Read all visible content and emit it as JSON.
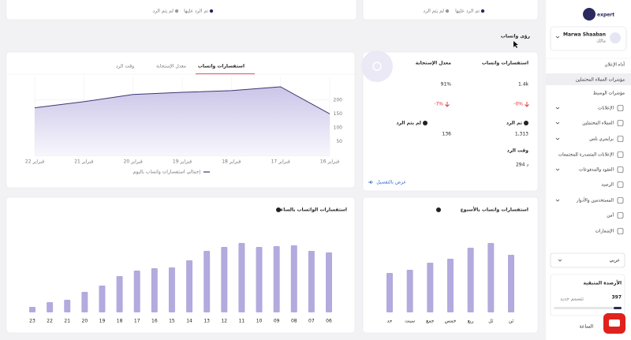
{
  "sidebar": {
    "logo": "expert",
    "user": {
      "name": "Marwa Shaaban",
      "role": "مالك"
    },
    "menu": [
      "آداء الإعلان",
      "مؤشرات العملاء المحتملين",
      "مؤشرات الوسيط",
      "الإعلانات",
      "العملاء المحتملين",
      "برايمري بلس",
      "الإعلانات المتصدرة للمجتمعات",
      "العقود والمدفوعات",
      "الرصيد",
      "المستخدمين والأدوار",
      "أمن",
      "الإشعارات"
    ],
    "language": "عربي",
    "balance": {
      "title": "الأرصدة المتبقية",
      "value": 397,
      "note": "تتسمم جديد"
    },
    "footer": "الساعة"
  },
  "top_cards": [
    {
      "legend": [
        "تم الرد عليها",
        "لم يتم الرد"
      ]
    },
    {
      "legend": [
        "تم الرد عليها",
        "لم يتم الرد"
      ]
    }
  ],
  "page_title": "رؤى واتساب",
  "summary": {
    "inquiries": {
      "label": "استفسارات واتساب",
      "value": "1.4k",
      "change": "-0%"
    },
    "response_rate": {
      "label": "معدل الإستجابة",
      "value": "91%",
      "change": "-7%"
    },
    "answered": {
      "label": "تم الرد",
      "value": "1,313"
    },
    "unanswered": {
      "label": "لم يتم الرد",
      "value": "136"
    },
    "response_time": {
      "label": "وقت الرد",
      "value": "294 د"
    },
    "details_link": "عرض بالتفصيل"
  },
  "tabs": [
    "استفسارات واتساب",
    "معدل الإستجابة",
    "وقت الرد"
  ],
  "chart_data": [
    {
      "type": "line",
      "categories": [
        "22 فبراير",
        "21 فبراير",
        "20 فبراير",
        "19 فبراير",
        "18 فبراير",
        "17 فبراير",
        "16 فبراير"
      ],
      "series": [
        {
          "name": "إجمالي استفسارات واتساب باليوم",
          "color": "#3b3873",
          "values": [
            172,
            194,
            220,
            228,
            234,
            248,
            150
          ]
        }
      ],
      "ylim": [
        0,
        285
      ],
      "yticks": [
        50,
        100,
        150,
        200
      ],
      "grid": true
    },
    {
      "type": "bar",
      "title": "استفسارات الواتساب بالساعة",
      "categories": [
        "23",
        "22",
        "21",
        "20",
        "19",
        "18",
        "17",
        "16",
        "15",
        "14",
        "13",
        "12",
        "11",
        "10",
        "09",
        "08",
        "07",
        "06"
      ],
      "values": [
        7,
        13,
        16,
        26,
        34,
        46,
        53,
        56,
        57,
        66,
        78,
        83,
        88,
        83,
        84,
        85,
        78,
        76
      ],
      "color": "#b3aade",
      "ylim": [
        0,
        100
      ]
    },
    {
      "type": "bar",
      "title": "استفسارات واتساب بالأسبوع",
      "categories": [
        "حد",
        "سبت",
        "جمع",
        "خمس",
        "ربع",
        "ثل",
        "ثن"
      ],
      "values": [
        50,
        54,
        63,
        68,
        82,
        88,
        73
      ],
      "color": "#b3aade",
      "ylim": [
        0,
        100
      ]
    }
  ]
}
